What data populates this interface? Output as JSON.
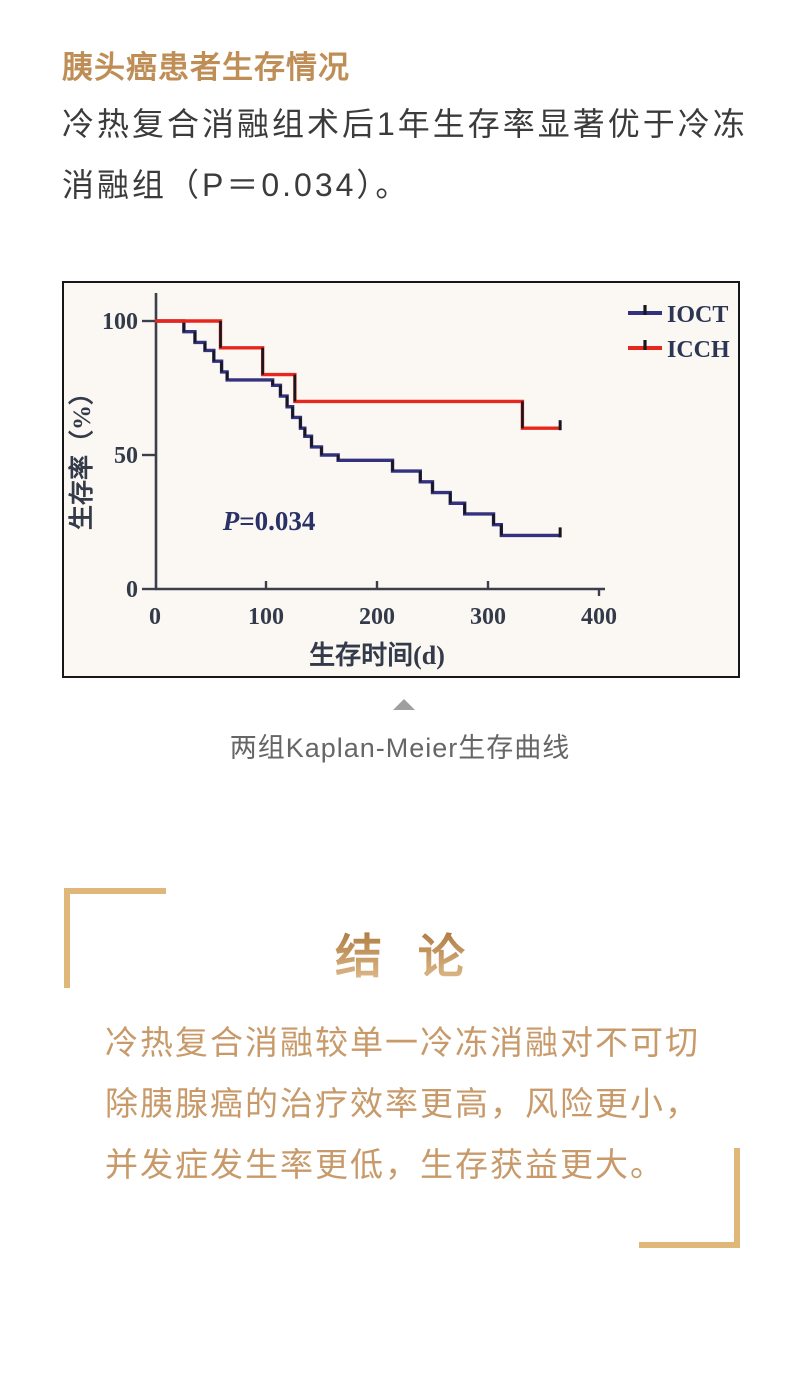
{
  "page": {
    "background": "#ffffff"
  },
  "article": {
    "heading": "胰头癌患者生存情况",
    "heading_color": "#bf8e57",
    "intro_lines": [
      "冷热复合消融组术后1年生存率显著优于冷冻",
      "消融组（P＝0.034）。"
    ]
  },
  "figure": {
    "caption": "两组Kaplan-Meier生存曲线",
    "pointer_icon": "triangle-up",
    "pointer_color": "#9f9f9f"
  },
  "chart_data": {
    "type": "line",
    "variant": "kaplan_meier_step",
    "title": "",
    "xlabel": "生存时间(d)",
    "ylabel": "生存率（%）",
    "xlim": [
      0,
      405
    ],
    "ylim": [
      0,
      110
    ],
    "xticks": [
      0,
      100,
      200,
      300,
      400
    ],
    "yticks": [
      0,
      50,
      100
    ],
    "grid": false,
    "legend_position": "top-right",
    "annotation": {
      "text": "P=0.034",
      "x_day": 61,
      "y_pct": 22
    },
    "colors": {
      "axis": "#3a3f4b",
      "tick_labels": "#333a49",
      "legend_text": "#2c3553",
      "annotation": "#2a3166",
      "plot_background": "#fbf8f3",
      "step_verticals": "#17171f"
    },
    "series": [
      {
        "name": "IOCT",
        "color": "#34327f",
        "x": [
          0,
          26,
          36,
          45,
          53,
          60,
          65,
          106,
          113,
          119,
          124,
          131,
          135,
          141,
          150,
          165,
          214,
          239,
          250,
          266,
          279,
          305,
          312
        ],
        "y": [
          100,
          96,
          92,
          89,
          85,
          81,
          78,
          76,
          72,
          68,
          64,
          60,
          57,
          53,
          50,
          48,
          44,
          40,
          36,
          32,
          28,
          24,
          20
        ],
        "end_x": 365,
        "censored_at_end": true
      },
      {
        "name": "ICCH",
        "color": "#e7271d",
        "x": [
          0,
          59,
          97,
          126,
          331
        ],
        "y": [
          100,
          90,
          80,
          70,
          60
        ],
        "end_x": 365,
        "censored_at_end": true
      }
    ]
  },
  "conclusion": {
    "title": "结 论",
    "title_gradient": [
      "#a26c30",
      "#e4c193"
    ],
    "bracket_color": "#dfb778",
    "text_color": "#c89a6a",
    "lines": [
      "冷热复合消融较单一冷冻消融对不可切",
      "除胰腺癌的治疗效率更高，风险更小，",
      "并发症发生率更低，生存获益更大。"
    ]
  }
}
